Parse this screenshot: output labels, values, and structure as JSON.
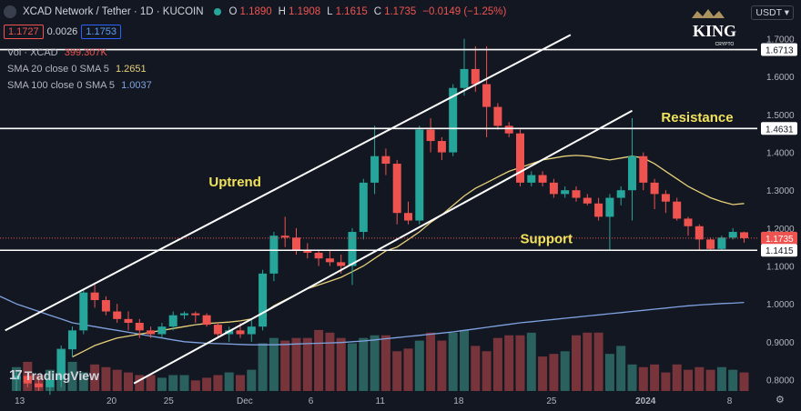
{
  "header": {
    "symbol_title": "XCAD Network / Tether · 1D · KUCOIN",
    "o_label": "O",
    "o_value": "1.1890",
    "h_label": "H",
    "h_value": "1.1908",
    "l_label": "L",
    "l_value": "1.1615",
    "c_label": "C",
    "c_value": "1.1735",
    "change": "−0.0149 (−1.25%)",
    "bid": "1.1727",
    "spread": "0.0026",
    "ask": "1.1753"
  },
  "indicators": {
    "vol_label": "Vol · XCAD",
    "vol_value": "399.307K",
    "sma20_label": "SMA 20 close 0 SMA 5",
    "sma20_value": "1.2651",
    "sma100_label": "SMA 100 close 0 SMA 5",
    "sma100_value": "1.0037"
  },
  "currency_selector": "USDT ▾",
  "logo": {
    "text": "KING",
    "subtext": "CRYPTO"
  },
  "watermark": "TradingView",
  "colors": {
    "up": "#26a69a",
    "down": "#ef5350",
    "sma20": "#e7d07a",
    "sma100": "#7fa2e0",
    "annotation": "#f1e25c",
    "line": "#ffffff",
    "background": "#131722"
  },
  "chart_data": {
    "type": "candlestick",
    "title": "XCAD Network / Tether · 1D · KUCOIN",
    "price_axis_ticks": [
      "0.8000",
      "0.9000",
      "1.0000",
      "1.1000",
      "1.2000",
      "1.3000",
      "1.4000",
      "1.5000",
      "1.6000",
      "1.7000"
    ],
    "ylim": [
      0.77,
      1.735
    ],
    "x_axis_ticks": [
      "13",
      "20",
      "25",
      "Dec",
      "6",
      "11",
      "18",
      "25",
      "2024",
      "8"
    ],
    "price_labels": {
      "last": "1.1735",
      "resistance": "1.4631",
      "support": "1.1415",
      "top": "1.6713"
    },
    "horizontal_levels": [
      {
        "name": "Resistance",
        "value": 1.4631
      },
      {
        "name": "Support",
        "value": 1.1415
      },
      {
        "name": "",
        "value": 1.6713
      }
    ],
    "annotations": [
      "Uptrend",
      "Resistance",
      "Support"
    ],
    "candles": [
      [
        0.8,
        0.82,
        0.77,
        0.81
      ],
      [
        0.81,
        0.82,
        0.78,
        0.79
      ],
      [
        0.79,
        0.81,
        0.77,
        0.78
      ],
      [
        0.78,
        0.81,
        0.76,
        0.8
      ],
      [
        0.8,
        0.89,
        0.78,
        0.88
      ],
      [
        0.88,
        0.94,
        0.86,
        0.93
      ],
      [
        0.93,
        1.04,
        0.92,
        1.03
      ],
      [
        1.03,
        1.05,
        0.99,
        1.01
      ],
      [
        1.01,
        1.02,
        0.97,
        0.98
      ],
      [
        0.98,
        1.0,
        0.95,
        0.96
      ],
      [
        0.96,
        0.98,
        0.93,
        0.95
      ],
      [
        0.95,
        0.96,
        0.91,
        0.93
      ],
      [
        0.93,
        0.94,
        0.91,
        0.92
      ],
      [
        0.92,
        0.95,
        0.91,
        0.94
      ],
      [
        0.94,
        0.98,
        0.93,
        0.97
      ],
      [
        0.97,
        0.98,
        0.96,
        0.975
      ],
      [
        0.975,
        0.98,
        0.95,
        0.97
      ],
      [
        0.97,
        0.975,
        0.94,
        0.945
      ],
      [
        0.945,
        0.95,
        0.91,
        0.92
      ],
      [
        0.92,
        0.94,
        0.9,
        0.93
      ],
      [
        0.93,
        0.95,
        0.91,
        0.92
      ],
      [
        0.92,
        0.96,
        0.9,
        0.94
      ],
      [
        0.94,
        1.09,
        0.93,
        1.08
      ],
      [
        1.08,
        1.19,
        1.06,
        1.18
      ],
      [
        1.18,
        1.23,
        1.15,
        1.175
      ],
      [
        1.175,
        1.2,
        1.13,
        1.14
      ],
      [
        1.14,
        1.16,
        1.12,
        1.135
      ],
      [
        1.135,
        1.14,
        1.1,
        1.12
      ],
      [
        1.12,
        1.14,
        1.1,
        1.11
      ],
      [
        1.11,
        1.13,
        1.08,
        1.1
      ],
      [
        1.1,
        1.2,
        1.05,
        1.19
      ],
      [
        1.19,
        1.33,
        1.17,
        1.32
      ],
      [
        1.32,
        1.47,
        1.29,
        1.39
      ],
      [
        1.39,
        1.41,
        1.34,
        1.37
      ],
      [
        1.37,
        1.38,
        1.21,
        1.24
      ],
      [
        1.24,
        1.27,
        1.21,
        1.22
      ],
      [
        1.22,
        1.47,
        1.21,
        1.46
      ],
      [
        1.46,
        1.49,
        1.4,
        1.43
      ],
      [
        1.43,
        1.44,
        1.38,
        1.4
      ],
      [
        1.4,
        1.58,
        1.39,
        1.57
      ],
      [
        1.57,
        1.7,
        1.55,
        1.62
      ],
      [
        1.62,
        1.68,
        1.56,
        1.58
      ],
      [
        1.58,
        1.68,
        1.44,
        1.52
      ],
      [
        1.52,
        1.53,
        1.46,
        1.47
      ],
      [
        1.47,
        1.48,
        1.44,
        1.45
      ],
      [
        1.45,
        1.46,
        1.31,
        1.32
      ],
      [
        1.32,
        1.35,
        1.31,
        1.34
      ],
      [
        1.34,
        1.35,
        1.31,
        1.32
      ],
      [
        1.32,
        1.33,
        1.28,
        1.29
      ],
      [
        1.29,
        1.31,
        1.28,
        1.3
      ],
      [
        1.3,
        1.31,
        1.27,
        1.28
      ],
      [
        1.28,
        1.29,
        1.26,
        1.265
      ],
      [
        1.265,
        1.28,
        1.22,
        1.23
      ],
      [
        1.23,
        1.29,
        1.14,
        1.28
      ],
      [
        1.28,
        1.31,
        1.26,
        1.3
      ],
      [
        1.3,
        1.49,
        1.22,
        1.39
      ],
      [
        1.39,
        1.4,
        1.3,
        1.32
      ],
      [
        1.32,
        1.33,
        1.25,
        1.29
      ],
      [
        1.29,
        1.3,
        1.24,
        1.27
      ],
      [
        1.27,
        1.28,
        1.22,
        1.225
      ],
      [
        1.225,
        1.23,
        1.18,
        1.205
      ],
      [
        1.205,
        1.21,
        1.14,
        1.17
      ],
      [
        1.17,
        1.175,
        1.14,
        1.145
      ],
      [
        1.145,
        1.18,
        1.14,
        1.175
      ],
      [
        1.175,
        1.2,
        1.17,
        1.19
      ],
      [
        1.189,
        1.1908,
        1.1615,
        1.1735
      ]
    ],
    "volume": [
      0.45,
      0.55,
      0.3,
      0.4,
      0.8,
      0.55,
      0.35,
      0.5,
      0.45,
      0.4,
      0.35,
      0.3,
      0.3,
      0.25,
      0.3,
      0.3,
      0.2,
      0.25,
      0.3,
      0.35,
      0.3,
      0.4,
      0.9,
      1.0,
      0.95,
      1.0,
      1.0,
      1.15,
      1.1,
      1.0,
      0.9,
      1.0,
      1.05,
      1.05,
      0.75,
      0.8,
      0.95,
      1.1,
      0.95,
      1.1,
      1.15,
      0.85,
      0.75,
      1.0,
      1.05,
      1.05,
      1.1,
      0.65,
      0.7,
      0.75,
      1.05,
      1.1,
      1.1,
      0.7,
      0.85,
      0.5,
      0.45,
      0.5,
      0.35,
      0.5,
      0.4,
      0.45,
      0.4,
      0.45,
      0.4,
      0.35
    ],
    "sma20": [
      null,
      null,
      null,
      null,
      null,
      0.86,
      0.875,
      0.89,
      0.9,
      0.91,
      0.915,
      0.92,
      0.925,
      0.93,
      0.935,
      0.94,
      0.945,
      0.948,
      0.95,
      0.952,
      0.955,
      0.96,
      0.975,
      0.995,
      1.01,
      1.025,
      1.04,
      1.05,
      1.06,
      1.07,
      1.085,
      1.1,
      1.12,
      1.14,
      1.15,
      1.17,
      1.19,
      1.215,
      1.235,
      1.26,
      1.285,
      1.305,
      1.32,
      1.335,
      1.35,
      1.36,
      1.37,
      1.38,
      1.385,
      1.39,
      1.392,
      1.39,
      1.385,
      1.38,
      1.385,
      1.39,
      1.385,
      1.37,
      1.35,
      1.33,
      1.31,
      1.295,
      1.28,
      1.27,
      1.262,
      1.2651
    ],
    "sma100": [
      1.0,
      0.99,
      0.98,
      0.97,
      0.96,
      0.95,
      0.945,
      0.94,
      0.935,
      0.93,
      0.925,
      0.92,
      0.915,
      0.91,
      0.905,
      0.9,
      0.898,
      0.896,
      0.895,
      0.894,
      0.893,
      0.892,
      0.892,
      0.892,
      0.893,
      0.894,
      0.895,
      0.896,
      0.897,
      0.898,
      0.9,
      0.902,
      0.905,
      0.908,
      0.911,
      0.914,
      0.917,
      0.92,
      0.923,
      0.926,
      0.93,
      0.934,
      0.938,
      0.942,
      0.946,
      0.95,
      0.953,
      0.956,
      0.959,
      0.962,
      0.965,
      0.968,
      0.971,
      0.974,
      0.977,
      0.98,
      0.983,
      0.986,
      0.989,
      0.992,
      0.995,
      0.997,
      0.999,
      1.001,
      1.002,
      1.0037
    ]
  }
}
